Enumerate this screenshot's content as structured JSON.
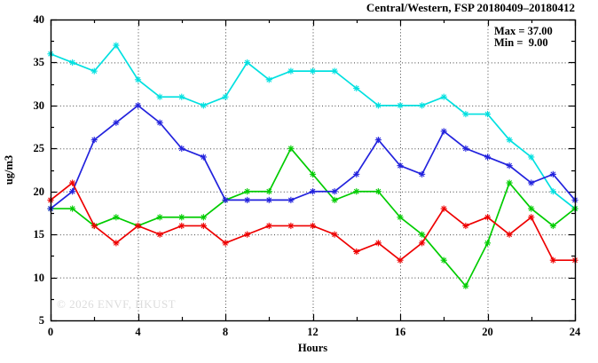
{
  "title": "Central/Western, FSP 20180409–20180412",
  "annotation": {
    "max_label": "Max = 37.00",
    "min_label": "Min =  9.00"
  },
  "watermark": "© 2026 ENVF, HKUST",
  "axes": {
    "ylabel": "ug/m3",
    "xlabel": "Hours"
  },
  "chart_data": {
    "type": "line",
    "title": "Central/Western, FSP 20180409–20180412",
    "xlabel": "Hours",
    "ylabel": "ug/m3",
    "xlim": [
      0,
      24
    ],
    "ylim": [
      5,
      40
    ],
    "grid": true,
    "legend_position": "none",
    "x_major_ticks": [
      0,
      4,
      8,
      12,
      16,
      20,
      24
    ],
    "x_minor_ticks": [
      2,
      6,
      10,
      14,
      18,
      22
    ],
    "x_gridlines": [
      4,
      8,
      12,
      16,
      20
    ],
    "y_major_ticks": [
      5,
      10,
      15,
      20,
      25,
      30,
      35,
      40
    ],
    "y_minor_ticks": [
      7.5,
      12.5,
      17.5,
      22.5,
      27.5,
      32.5,
      37.5
    ],
    "y_gridlines": [
      10,
      15,
      20,
      25,
      30,
      35
    ],
    "x": [
      0,
      1,
      2,
      3,
      4,
      5,
      6,
      7,
      8,
      9,
      10,
      11,
      12,
      13,
      14,
      15,
      16,
      17,
      18,
      19,
      20,
      21,
      22,
      23,
      24
    ],
    "series": [
      {
        "name": "series-cyan",
        "color": "#00e0e0",
        "values": [
          36,
          35,
          34,
          37,
          33,
          31,
          31,
          30,
          31,
          35,
          33,
          34,
          34,
          34,
          32,
          30,
          30,
          30,
          31,
          29,
          29,
          26,
          24,
          20,
          18
        ]
      },
      {
        "name": "series-green",
        "color": "#00cc00",
        "values": [
          18,
          18,
          16,
          17,
          16,
          17,
          17,
          17,
          19,
          20,
          20,
          25,
          22,
          19,
          20,
          20,
          17,
          15,
          12,
          9,
          14,
          21,
          18,
          16,
          18
        ]
      },
      {
        "name": "series-blue",
        "color": "#2222dd",
        "values": [
          18,
          20,
          26,
          28,
          30,
          28,
          25,
          24,
          19,
          19,
          19,
          19,
          20,
          20,
          22,
          26,
          23,
          22,
          27,
          25,
          24,
          23,
          21,
          22,
          19
        ]
      },
      {
        "name": "series-red",
        "color": "#ee0000",
        "values": [
          19,
          21,
          16,
          14,
          16,
          15,
          16,
          16,
          14,
          15,
          16,
          16,
          16,
          15,
          13,
          14,
          12,
          14,
          18,
          16,
          17,
          15,
          17,
          12,
          12
        ]
      }
    ],
    "annotations": [
      "Max = 37.00",
      "Min =  9.00"
    ],
    "marker": "asterisk",
    "frame_color": "#000000",
    "grid_color": "#444444"
  }
}
